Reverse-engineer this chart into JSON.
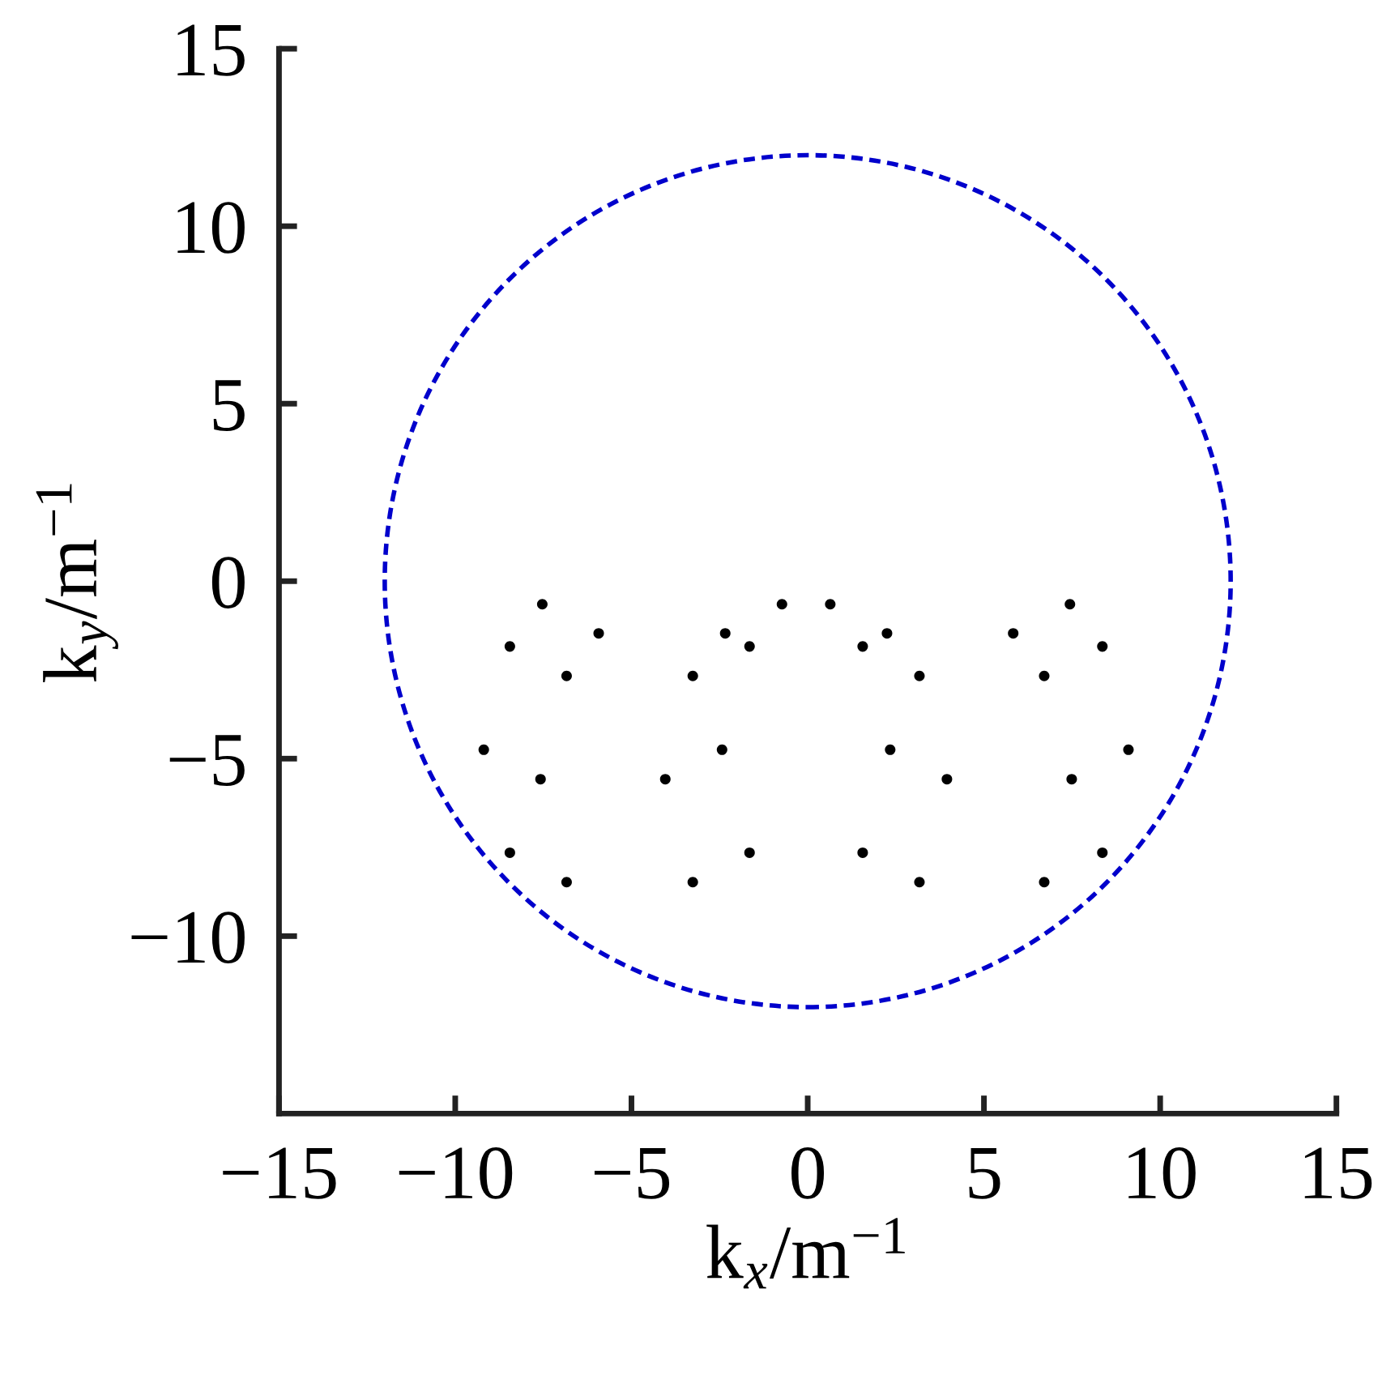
{
  "chart_data": {
    "type": "scatter",
    "xlabel": "k$_{x}$/m$^{−1}$",
    "ylabel": "k$_{y}$/m$^{−1}$",
    "xlim": [
      -15,
      15
    ],
    "ylim": [
      -15,
      15
    ],
    "xticks": [
      -15,
      -10,
      -5,
      0,
      5,
      10,
      15
    ],
    "yticks": [
      -10,
      -5,
      0,
      5,
      10,
      15
    ],
    "grid": false,
    "legend": false,
    "series": [
      {
        "type": "scatter",
        "color": "#000000",
        "x": [
          -7.53,
          -5.93,
          -8.45,
          -6.84,
          -9.19,
          -7.58,
          -8.45,
          -6.84,
          -0.73,
          -2.34,
          -1.65,
          -3.26,
          -2.43,
          -4.04,
          -1.65,
          -3.26,
          0.64,
          2.25,
          1.56,
          3.17,
          7.44,
          5.83,
          8.36,
          6.71,
          2.34,
          3.95,
          9.1,
          7.49,
          1.56,
          3.17,
          8.36,
          6.71
        ],
        "values": [
          -0.65,
          -1.47,
          -1.84,
          -2.67,
          -4.75,
          -5.58,
          -7.65,
          -8.48,
          -0.65,
          -1.47,
          -1.84,
          -2.67,
          -4.75,
          -5.58,
          -7.65,
          -8.48,
          -0.65,
          -1.47,
          -1.84,
          -2.67,
          -0.65,
          -1.47,
          -1.84,
          -2.67,
          -4.75,
          -5.58,
          -4.75,
          -5.58,
          -7.65,
          -8.48,
          -7.65,
          -8.48
        ]
      }
    ]
  }
}
